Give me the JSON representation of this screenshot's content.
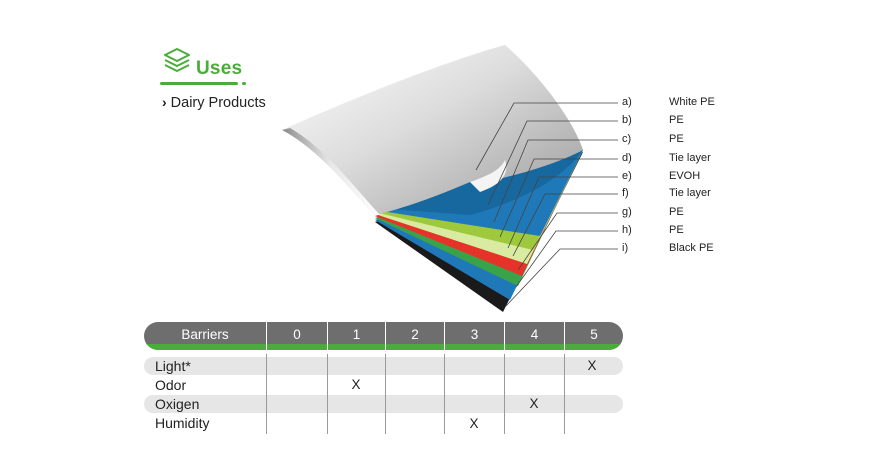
{
  "uses": {
    "title": "Uses",
    "icon": "stacked-layers-icon",
    "accent_color": "#4aac3a",
    "items": [
      {
        "label": "Dairy Products"
      }
    ]
  },
  "layers": [
    {
      "letter": "a)",
      "name": "White PE",
      "color": "#f2f2f2"
    },
    {
      "letter": "b)",
      "name": "PE",
      "color": "#1f79b8"
    },
    {
      "letter": "c)",
      "name": "PE",
      "color": "#1f79b8"
    },
    {
      "letter": "d)",
      "name": "Tie layer",
      "color": "#9fc93c"
    },
    {
      "letter": "e)",
      "name": "EVOH",
      "color": "#d8eba0"
    },
    {
      "letter": "f)",
      "name": "Tie layer",
      "color": "#e5332a"
    },
    {
      "letter": "g)",
      "name": "PE",
      "color": "#3aa34a"
    },
    {
      "letter": "h)",
      "name": "PE",
      "color": "#1f79b8"
    },
    {
      "letter": "i)",
      "name": "Black PE",
      "color": "#1a1a1a"
    }
  ],
  "barriers": {
    "header_label": "Barriers",
    "levels": [
      "0",
      "1",
      "2",
      "3",
      "4",
      "5"
    ],
    "header_color": "#6e6e6e",
    "rows": [
      {
        "label": "Light*",
        "level": 5,
        "mark": "X"
      },
      {
        "label": "Odor",
        "level": 1,
        "mark": "X"
      },
      {
        "label": "Oxigen",
        "level": 4,
        "mark": "X"
      },
      {
        "label": "Humidity",
        "level": 3,
        "mark": "X"
      }
    ]
  }
}
